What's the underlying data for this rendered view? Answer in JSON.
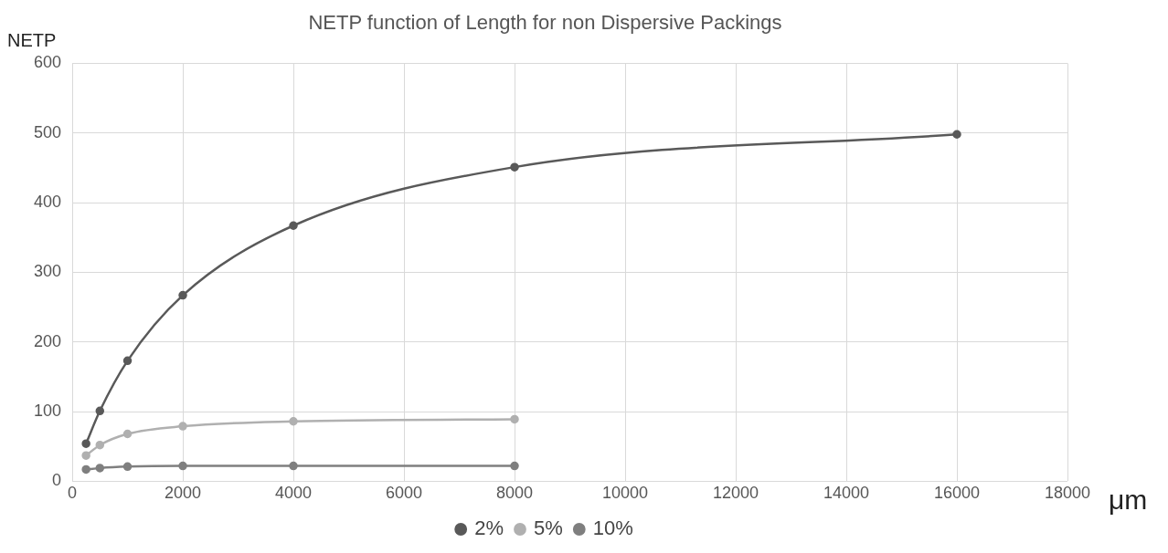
{
  "chart_data": {
    "type": "line",
    "title": "NETP function of Length for non Dispersive Packings",
    "xlabel": "μm",
    "ylabel": "NETP",
    "xlim": [
      0,
      18000
    ],
    "xticks": [
      0,
      2000,
      4000,
      6000,
      8000,
      10000,
      12000,
      14000,
      16000,
      18000
    ],
    "ylim": [
      0,
      600
    ],
    "yticks": [
      0,
      100,
      200,
      300,
      400,
      500,
      600
    ],
    "grid": true,
    "legend": "bottom",
    "marker": "circle",
    "series": [
      {
        "name": "2%",
        "color": "#595959",
        "x": [
          250,
          500,
          1000,
          2000,
          4000,
          8000,
          16000
        ],
        "values": [
          54,
          101,
          173,
          267,
          367,
          451,
          498
        ]
      },
      {
        "name": "5%",
        "color": "#b0b0b0",
        "x": [
          250,
          500,
          1000,
          2000,
          4000,
          8000
        ],
        "values": [
          37,
          52,
          68,
          79,
          86,
          89
        ]
      },
      {
        "name": "10%",
        "color": "#7f7f7f",
        "x": [
          250,
          500,
          1000,
          2000,
          4000,
          8000
        ],
        "values": [
          17,
          19,
          21,
          22,
          22,
          22
        ]
      }
    ]
  }
}
